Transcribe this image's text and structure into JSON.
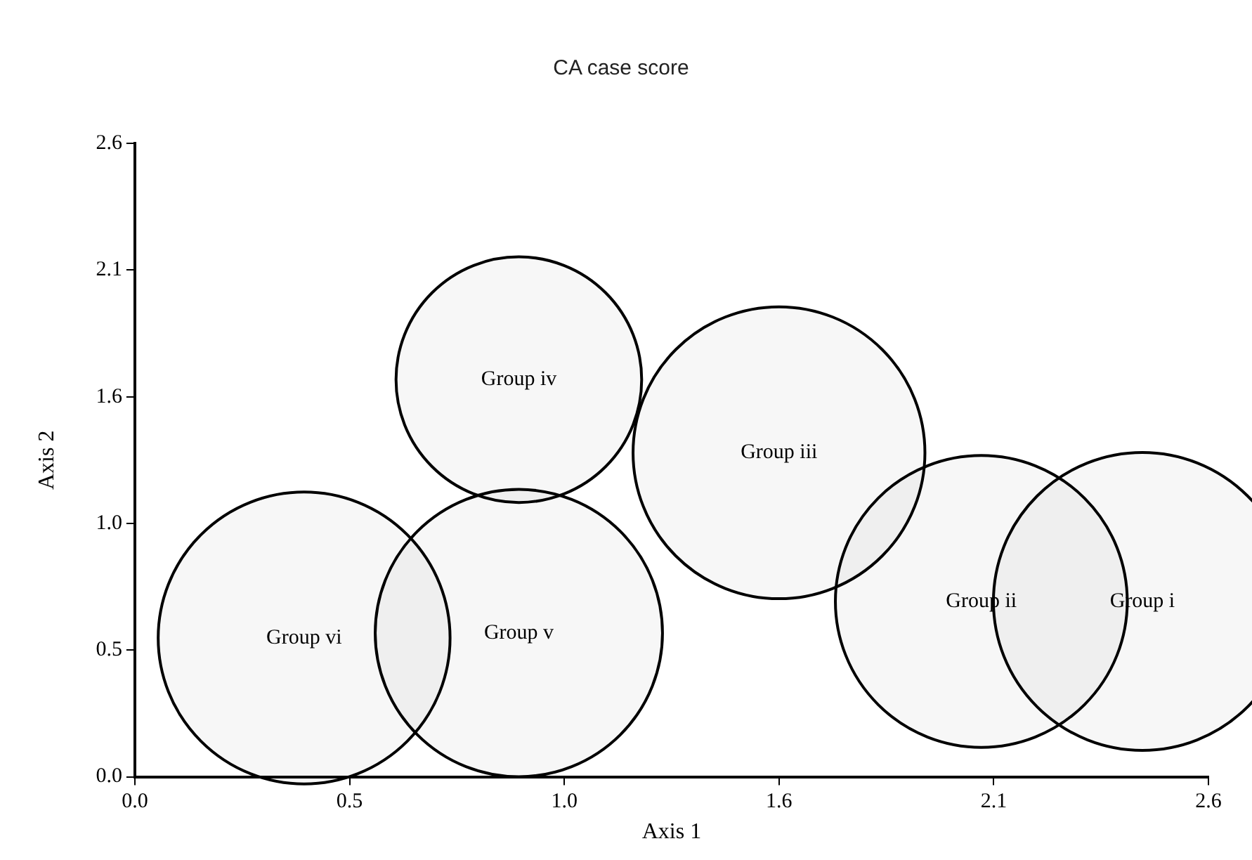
{
  "chart_data": {
    "type": "bubble",
    "title": "CA case score",
    "xlabel": "Axis 1",
    "ylabel": "Axis 2",
    "series": [
      {
        "color": "#000000",
        "x": [
          2.44,
          2.05,
          1.56,
          0.93,
          0.93,
          0.41
        ],
        "values": [
          0.72,
          0.72,
          1.33,
          1.63,
          0.59,
          0.57
        ],
        "sizes": [
          1,
          0.96,
          0.96,
          0.68,
          0.93,
          0.96
        ]
      }
    ],
    "annotations": [
      {
        "text": "Group i",
        "x": 2.44,
        "y": 0.72
      },
      {
        "text": "Group ii",
        "x": 2.05,
        "y": 0.72
      },
      {
        "text": "Group iii",
        "x": 1.56,
        "y": 1.33
      },
      {
        "text": "Group iv",
        "x": 0.93,
        "y": 1.63
      },
      {
        "text": "Group v",
        "x": 0.93,
        "y": 0.59
      },
      {
        "text": "Group vi",
        "x": 0.41,
        "y": 0.57
      }
    ],
    "xlim": [
      0,
      2.6
    ],
    "ylim": [
      0,
      2.6
    ],
    "xticks": [
      {
        "value": 0,
        "label": "0.0"
      },
      {
        "value": 0.52,
        "label": "0.5"
      },
      {
        "value": 1.04,
        "label": "1.0"
      },
      {
        "value": 1.56,
        "label": "1.6"
      },
      {
        "value": 2.08,
        "label": "2.1"
      },
      {
        "value": 2.6,
        "label": "2.6"
      }
    ],
    "yticks": [
      {
        "value": 0,
        "label": "0.0"
      },
      {
        "value": 0.52,
        "label": "0.5"
      },
      {
        "value": 1.04,
        "label": "1.0"
      },
      {
        "value": 1.56,
        "label": "1.6"
      },
      {
        "value": 2.08,
        "label": "2.1"
      },
      {
        "value": 2.6,
        "label": "2.6"
      }
    ],
    "grid": false,
    "legend": false
  }
}
